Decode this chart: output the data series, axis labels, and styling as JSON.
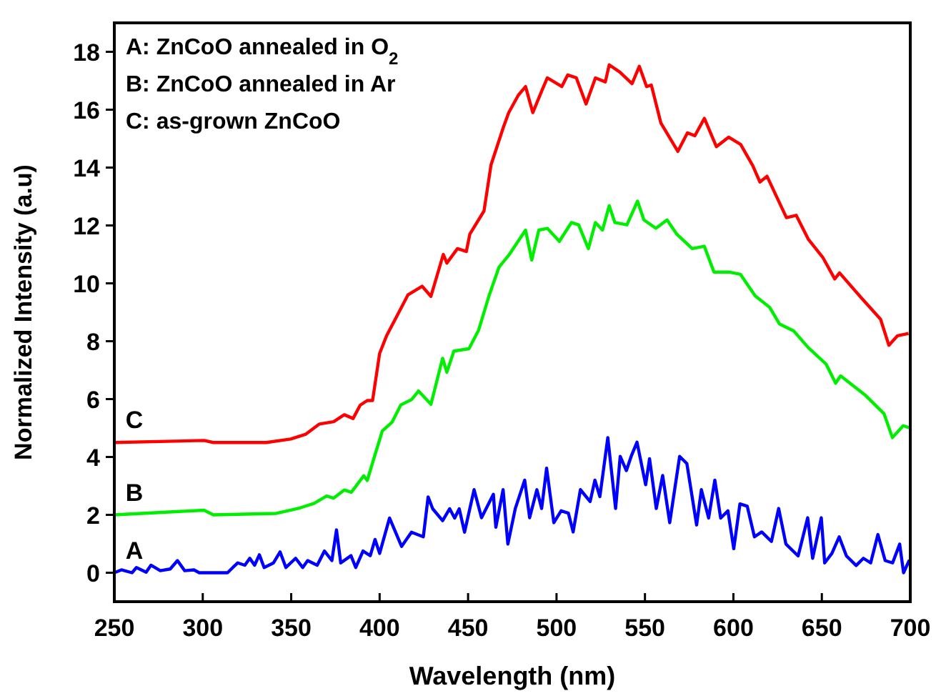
{
  "chart_data": {
    "type": "line",
    "xlabel": "Wavelength (nm)",
    "ylabel": "Normalized Intensity (a.u)",
    "xlim": [
      250,
      700
    ],
    "ylim": [
      -1,
      19
    ],
    "xticks": [
      250,
      300,
      350,
      400,
      450,
      500,
      550,
      600,
      650,
      700
    ],
    "yticks": [
      0,
      2,
      4,
      6,
      8,
      10,
      12,
      14,
      16,
      18
    ],
    "grid": false,
    "line_style": "solid",
    "annotations": [
      "A: ZnCoO annealed in O$_{2}$",
      "B: ZnCoO annealed in Ar",
      "C: as-grown ZnCoO"
    ],
    "series": [
      {
        "name": "C",
        "color": "#ff0000",
        "x": [
          250,
          300.7,
          306,
          336,
          349.7,
          358,
          366,
          374,
          380,
          385,
          389,
          393,
          396,
          400,
          404,
          416,
          424,
          429,
          436,
          438,
          444,
          449,
          451,
          459,
          463,
          470,
          473,
          478.4,
          482.5,
          486.6,
          492,
          494.8,
          503,
          506.3,
          511.2,
          516.7,
          522,
          527.6,
          529.8,
          535.8,
          542.7,
          546.8,
          550.9,
          553.6,
          559,
          568.6,
          574,
          578.2,
          583.6,
          590.4,
          597.3,
          604.1,
          610.9,
          615,
          619,
          630,
          635.5,
          642.3,
          650.5,
          657.3,
          660,
          672.3,
          683.2,
          687.9,
          692.8,
          699
        ],
        "values": [
          4.5,
          4.57,
          4.5,
          4.5,
          4.62,
          4.78,
          5.14,
          5.22,
          5.46,
          5.33,
          5.79,
          5.95,
          5.95,
          7.58,
          8.2,
          9.6,
          9.9,
          9.55,
          11.0,
          10.7,
          11.2,
          11.1,
          11.7,
          12.5,
          14.1,
          15.4,
          15.9,
          16.5,
          16.8,
          15.9,
          16.7,
          17.1,
          16.8,
          17.2,
          17.1,
          16.2,
          17.1,
          16.96,
          17.55,
          17.3,
          16.9,
          17.5,
          16.8,
          16.85,
          15.54,
          14.56,
          15.2,
          15.1,
          15.7,
          14.72,
          15.05,
          14.8,
          14.07,
          13.5,
          13.7,
          12.27,
          12.35,
          11.53,
          10.9,
          10.15,
          10.36,
          9.5,
          8.76,
          7.86,
          8.19,
          8.27
        ]
      },
      {
        "name": "B",
        "color": "#00ee00",
        "x": [
          250,
          300.7,
          306,
          341.6,
          355,
          363,
          370,
          374,
          380,
          384,
          391,
          393,
          397,
          401.5,
          407,
          412,
          418,
          422,
          429,
          435.6,
          438,
          442,
          450.5,
          456,
          462,
          467.5,
          473,
          482.5,
          486,
          490,
          494.8,
          501.6,
          508.4,
          512.5,
          518,
          522,
          526,
          529.8,
          533,
          539.8,
          545.8,
          549.4,
          556.2,
          562.5,
          568,
          576.7,
          583.6,
          589,
          597.3,
          604,
          612.3,
          620.5,
          626,
          634.2,
          642.3,
          652.4,
          657.8,
          660.6,
          674.3,
          685.2,
          689.9,
          696,
          700
        ],
        "values": [
          2.0,
          2.16,
          2.0,
          2.05,
          2.24,
          2.4,
          2.65,
          2.58,
          2.86,
          2.78,
          3.35,
          3.19,
          4.0,
          4.9,
          5.2,
          5.8,
          5.98,
          6.28,
          5.82,
          7.41,
          6.93,
          7.66,
          7.74,
          8.39,
          9.6,
          10.56,
          10.97,
          11.84,
          10.8,
          11.84,
          11.9,
          11.45,
          12.1,
          12.02,
          11.2,
          12.1,
          11.84,
          12.68,
          12.1,
          12.02,
          12.84,
          12.19,
          11.9,
          12.19,
          11.7,
          11.2,
          11.28,
          10.39,
          10.39,
          10.31,
          9.57,
          9.17,
          8.6,
          8.35,
          7.78,
          7.21,
          6.55,
          6.8,
          6.15,
          5.49,
          4.67,
          5.08,
          5.0
        ]
      },
      {
        "name": "A",
        "color": "#0000ff",
        "x": [
          250,
          254,
          260,
          262.5,
          268,
          270.7,
          276,
          281.6,
          285.7,
          289.8,
          295,
          298,
          314,
          317,
          319.8,
          323.8,
          326.6,
          329.3,
          332,
          334.7,
          340,
          343.7,
          347,
          352.5,
          356.5,
          359.3,
          364.7,
          368.8,
          373,
          375.6,
          378,
          383.8,
          386.5,
          390.6,
          394.7,
          397.4,
          400,
          405.6,
          412.4,
          418,
          424.7,
          427.4,
          430,
          435.6,
          439.6,
          442.4,
          445,
          448,
          453.4,
          457.6,
          464.3,
          465.7,
          469.8,
          472.5,
          476.7,
          482,
          484.8,
          488.9,
          491.6,
          494.4,
          498.5,
          502.6,
          506.7,
          509.4,
          513.5,
          519,
          521.7,
          524.5,
          529,
          533.4,
          536,
          539.5,
          542.2,
          545.5,
          550.4,
          552.6,
          556.4,
          560,
          564,
          569.6,
          573.7,
          579.2,
          581.9,
          586,
          589.5,
          592.8,
          596.9,
          600.2,
          603.7,
          607.8,
          611.9,
          616,
          621.5,
          625.6,
          629.7,
          636.6,
          642,
          644.8,
          649.7,
          651.6,
          655.7,
          659.8,
          663.9,
          669.4,
          673.5,
          677.6,
          681.7,
          685.8,
          690,
          694,
          696.2,
          699.5
        ],
        "values": [
          0,
          0.1,
          0,
          0.18,
          0.02,
          0.26,
          0.07,
          0.13,
          0.42,
          0.07,
          0.1,
          0,
          0,
          0.18,
          0.34,
          0.26,
          0.5,
          0.26,
          0.62,
          0.18,
          0.34,
          0.72,
          0.18,
          0.5,
          0.18,
          0.42,
          0.26,
          0.75,
          0.42,
          1.48,
          0.34,
          0.59,
          0.18,
          0.75,
          0.59,
          1.15,
          0.67,
          1.89,
          0.91,
          1.4,
          1.24,
          2.62,
          2.21,
          1.8,
          2.21,
          1.89,
          2.21,
          1.4,
          2.87,
          1.9,
          2.71,
          1.57,
          2.87,
          0.99,
          2.22,
          3.2,
          1.9,
          2.87,
          2.22,
          3.61,
          1.73,
          2.14,
          2.06,
          1.41,
          2.87,
          2.46,
          3.2,
          2.63,
          4.67,
          2.22,
          4.02,
          3.53,
          4.02,
          4.51,
          3.04,
          3.94,
          2.22,
          3.36,
          1.73,
          4.02,
          3.77,
          1.65,
          2.87,
          1.89,
          3.2,
          1.89,
          2.14,
          0.83,
          2.38,
          2.3,
          1.24,
          1.41,
          1.08,
          2.22,
          0.99,
          0.58,
          1.9,
          0.5,
          1.9,
          0.34,
          0.67,
          1.24,
          0.58,
          0.25,
          0.5,
          0.34,
          1.32,
          0.42,
          0.34,
          0.99,
          0,
          0.44
        ]
      }
    ]
  }
}
